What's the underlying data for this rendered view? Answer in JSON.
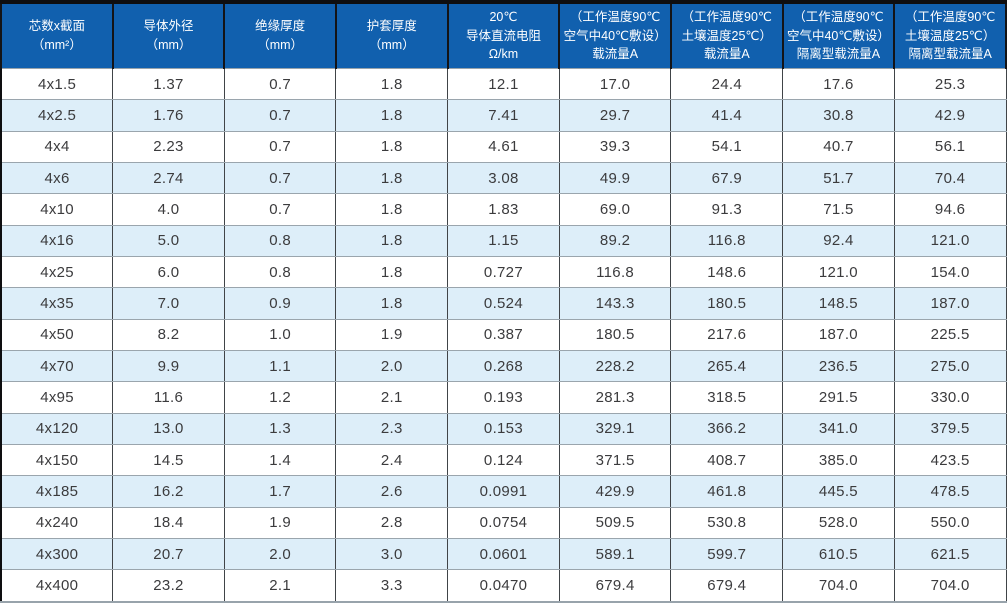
{
  "table": {
    "title_semantic": "cable-specification-table",
    "headers": [
      "芯数x截面\n（mm²）",
      "导体外径\n（mm）",
      "绝缘厚度\n（mm）",
      "护套厚度\n（mm）",
      "20℃\n导体直流电阻\nΩ/km",
      "（工作温度90℃\n空气中40℃敷设）\n载流量A",
      "（工作温度90℃\n土壤温度25℃）\n载流量A",
      "（工作温度90℃\n空气中40℃敷设）\n隔离型载流量A",
      "（工作温度90℃\n土壤温度25℃）\n隔离型载流量A"
    ],
    "rows": [
      [
        "4x1.5",
        "1.37",
        "0.7",
        "1.8",
        "12.1",
        "17.0",
        "24.4",
        "17.6",
        "25.3"
      ],
      [
        "4x2.5",
        "1.76",
        "0.7",
        "1.8",
        "7.41",
        "29.7",
        "41.4",
        "30.8",
        "42.9"
      ],
      [
        "4x4",
        "2.23",
        "0.7",
        "1.8",
        "4.61",
        "39.3",
        "54.1",
        "40.7",
        "56.1"
      ],
      [
        "4x6",
        "2.74",
        "0.7",
        "1.8",
        "3.08",
        "49.9",
        "67.9",
        "51.7",
        "70.4"
      ],
      [
        "4x10",
        "4.0",
        "0.7",
        "1.8",
        "1.83",
        "69.0",
        "91.3",
        "71.5",
        "94.6"
      ],
      [
        "4x16",
        "5.0",
        "0.8",
        "1.8",
        "1.15",
        "89.2",
        "116.8",
        "92.4",
        "121.0"
      ],
      [
        "4x25",
        "6.0",
        "0.8",
        "1.8",
        "0.727",
        "116.8",
        "148.6",
        "121.0",
        "154.0"
      ],
      [
        "4x35",
        "7.0",
        "0.9",
        "1.8",
        "0.524",
        "143.3",
        "180.5",
        "148.5",
        "187.0"
      ],
      [
        "4x50",
        "8.2",
        "1.0",
        "1.9",
        "0.387",
        "180.5",
        "217.6",
        "187.0",
        "225.5"
      ],
      [
        "4x70",
        "9.9",
        "1.1",
        "2.0",
        "0.268",
        "228.2",
        "265.4",
        "236.5",
        "275.0"
      ],
      [
        "4x95",
        "11.6",
        "1.2",
        "2.1",
        "0.193",
        "281.3",
        "318.5",
        "291.5",
        "330.0"
      ],
      [
        "4x120",
        "13.0",
        "1.3",
        "2.3",
        "0.153",
        "329.1",
        "366.2",
        "341.0",
        "379.5"
      ],
      [
        "4x150",
        "14.5",
        "1.4",
        "2.4",
        "0.124",
        "371.5",
        "408.7",
        "385.0",
        "423.5"
      ],
      [
        "4x185",
        "16.2",
        "1.7",
        "2.6",
        "0.0991",
        "429.9",
        "461.8",
        "445.5",
        "478.5"
      ],
      [
        "4x240",
        "18.4",
        "1.9",
        "2.8",
        "0.0754",
        "509.5",
        "530.8",
        "528.0",
        "550.0"
      ],
      [
        "4x300",
        "20.7",
        "2.0",
        "3.0",
        "0.0601",
        "589.1",
        "599.7",
        "610.5",
        "621.5"
      ],
      [
        "4x400",
        "23.2",
        "2.1",
        "3.3",
        "0.0470",
        "679.4",
        "679.4",
        "704.0",
        "704.0"
      ]
    ],
    "colors": {
      "header_bg": "#1160ae",
      "header_text": "#ffffff",
      "row_bg": "#ffffff",
      "row_alt_bg": "#ddeef9",
      "vertical_border": "#404448",
      "horizontal_border": "#9aa5ad",
      "outer_top_border": "#0e0e10",
      "body_text": "#3b3b3d"
    }
  }
}
